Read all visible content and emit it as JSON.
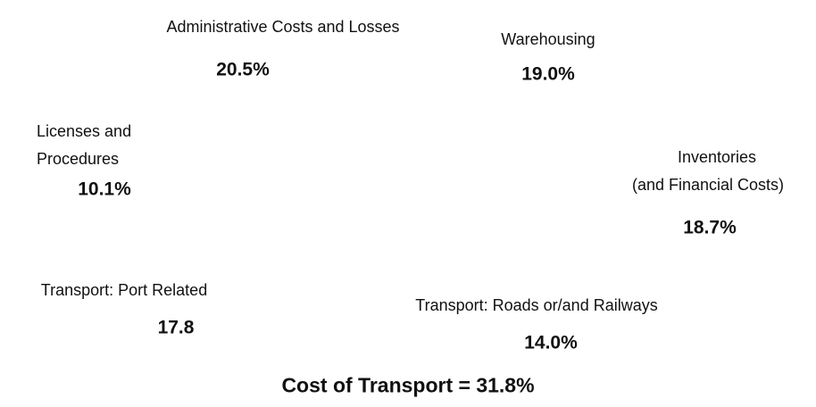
{
  "items": [
    {
      "label": [
        "Administrative Costs and Losses"
      ],
      "value": "20.5%"
    },
    {
      "label": [
        "Warehousing"
      ],
      "value": "19.0%"
    },
    {
      "label": [
        "Licenses and",
        "Procedures"
      ],
      "value": "10.1%"
    },
    {
      "label": [
        "Inventories",
        "(and Financial Costs)"
      ],
      "value": "18.7%"
    },
    {
      "label": [
        "Transport: Port Related"
      ],
      "value": "17.8"
    },
    {
      "label": [
        "Transport: Roads or/and Railways"
      ],
      "value": "14.0%"
    }
  ],
  "footer": "Cost of Transport = 31.8%"
}
